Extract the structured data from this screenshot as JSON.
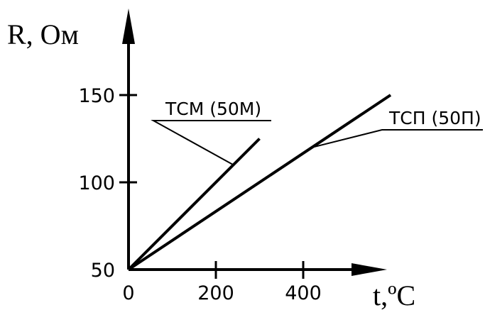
{
  "chart_data": {
    "type": "line",
    "xlabel": "t,ºC",
    "ylabel": "R, Ом",
    "x_ticks": [
      0,
      200,
      400
    ],
    "y_ticks": [
      50,
      100,
      150
    ],
    "xlim": [
      0,
      600
    ],
    "ylim": [
      50,
      170
    ],
    "grid": false,
    "series": [
      {
        "name": "ТСМ (50М)",
        "x": [
          0,
          300
        ],
        "y": [
          50,
          125
        ]
      },
      {
        "name": "ТСП (50П)",
        "x": [
          0,
          600
        ],
        "y": [
          50,
          150
        ]
      }
    ]
  },
  "colors": {
    "ink": "#000000",
    "background": "#ffffff"
  }
}
